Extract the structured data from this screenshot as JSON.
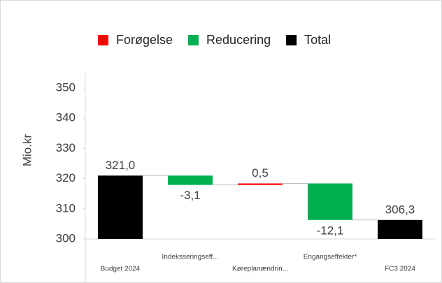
{
  "chart_data": {
    "type": "waterfall",
    "y_axis_label": "Mio.kr",
    "categories": [
      "Budget 2024",
      "Indeksseringseff...",
      "Køreplanændrin...",
      "Engangseffekter*",
      "FC3 2024"
    ],
    "series": [
      {
        "name": "Forøgelse",
        "color": "#ff0000",
        "measure": "relative",
        "values": [
          null,
          null,
          0.5,
          null,
          null
        ],
        "value_labels": [
          null,
          null,
          "0,5",
          null,
          null
        ]
      },
      {
        "name": "Reducering",
        "color": "#00b050",
        "measure": "relative",
        "values": [
          null,
          -3.1,
          null,
          -12.1,
          null
        ],
        "value_labels": [
          null,
          "-3,1",
          null,
          "-12,1",
          null
        ]
      },
      {
        "name": "Total",
        "color": "#000000",
        "measure": "absolute",
        "values": [
          321.0,
          null,
          null,
          null,
          306.3
        ],
        "value_labels": [
          "321,0",
          null,
          null,
          null,
          "306,3"
        ]
      }
    ],
    "ylim": [
      300,
      350
    ],
    "yticks": [
      300,
      310,
      320,
      330,
      340,
      350
    ],
    "grid": false,
    "legend": "top"
  }
}
